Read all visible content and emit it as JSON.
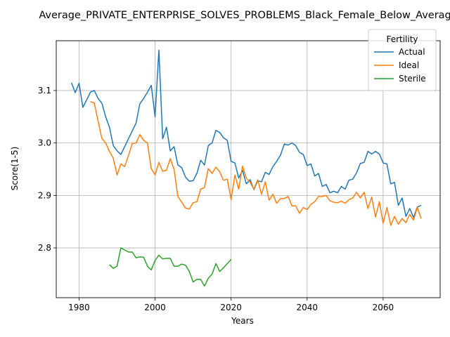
{
  "chart_data": {
    "type": "line",
    "title": "Average_PRIVATE_ENTERPRISE_SOLVES_PROBLEMS_Black_Female_Below_Average",
    "xlabel": "Years",
    "ylabel": "Score(1-5)",
    "xlim": [
      1974,
      2075
    ],
    "ylim": [
      2.705,
      3.195
    ],
    "x_ticks": [
      1980,
      2000,
      2020,
      2040,
      2060
    ],
    "y_ticks": [
      2.8,
      2.9,
      3.0,
      3.1
    ],
    "x_tick_labels": [
      "1980",
      "2000",
      "2020",
      "2040",
      "2060"
    ],
    "y_tick_labels": [
      "2.8",
      "2.9",
      "3.0",
      "3.1"
    ],
    "grid": true,
    "legend": {
      "title": "Fertility",
      "placement": "top-right"
    },
    "series": [
      {
        "name": "Actual",
        "color": "#1f77b4",
        "x": [
          1978,
          1979,
          1980,
          1981,
          1982,
          1983,
          1984,
          1985,
          1986,
          1987,
          1988,
          1989,
          1990,
          1991,
          1992,
          1993,
          1994,
          1995,
          1996,
          1997,
          1998,
          1999,
          2000,
          2001,
          2002,
          2003,
          2004,
          2005,
          2006,
          2007,
          2008,
          2009,
          2010,
          2011,
          2012,
          2013,
          2014,
          2015,
          2016,
          2017,
          2018,
          2019,
          2020,
          2021,
          2022,
          2023,
          2024,
          2025,
          2026,
          2027,
          2028,
          2029,
          2030,
          2031,
          2032,
          2033,
          2034,
          2035,
          2036,
          2037,
          2038,
          2039,
          2040,
          2041,
          2042,
          2043,
          2044,
          2045,
          2046,
          2047,
          2048,
          2049,
          2050,
          2051,
          2052,
          2053,
          2054,
          2055,
          2056,
          2057,
          2058,
          2059,
          2060,
          2061,
          2062,
          2063,
          2064,
          2065,
          2066,
          2067,
          2068,
          2069,
          2070
        ],
        "values": [
          3.115,
          3.096,
          3.114,
          3.068,
          3.082,
          3.097,
          3.1,
          3.085,
          3.076,
          3.05,
          3.03,
          2.995,
          2.985,
          2.978,
          2.993,
          3.008,
          3.023,
          3.038,
          3.075,
          3.085,
          3.097,
          3.11,
          3.05,
          3.177,
          3.008,
          3.03,
          2.985,
          2.993,
          2.958,
          2.953,
          2.935,
          2.927,
          2.928,
          2.942,
          2.967,
          2.958,
          2.995,
          3.0,
          3.024,
          3.02,
          3.01,
          3.005,
          2.965,
          2.962,
          2.933,
          2.948,
          2.922,
          2.93,
          2.911,
          2.928,
          2.926,
          2.944,
          2.94,
          2.955,
          2.965,
          2.977,
          2.998,
          2.996,
          3.0,
          2.995,
          2.982,
          2.978,
          2.957,
          2.96,
          2.937,
          2.942,
          2.917,
          2.921,
          2.905,
          2.908,
          2.905,
          2.917,
          2.912,
          2.929,
          2.931,
          2.943,
          2.961,
          2.963,
          2.984,
          2.979,
          2.984,
          2.979,
          2.962,
          2.96,
          2.922,
          2.925,
          2.881,
          2.895,
          2.86,
          2.875,
          2.858,
          2.878,
          2.881
        ]
      },
      {
        "name": "Ideal",
        "color": "#ff7f0e",
        "x": [
          1983,
          1984,
          1985,
          1986,
          1987,
          1988,
          1989,
          1990,
          1991,
          1992,
          1993,
          1994,
          1995,
          1996,
          1997,
          1998,
          1999,
          2000,
          2001,
          2002,
          2003,
          2004,
          2005,
          2006,
          2007,
          2008,
          2009,
          2010,
          2011,
          2012,
          2013,
          2014,
          2015,
          2016,
          2017,
          2018,
          2019,
          2020,
          2021,
          2022,
          2023,
          2024,
          2025,
          2026,
          2027,
          2028,
          2029,
          2030,
          2031,
          2032,
          2033,
          2034,
          2035,
          2036,
          2037,
          2038,
          2039,
          2040,
          2041,
          2042,
          2043,
          2044,
          2045,
          2046,
          2047,
          2048,
          2049,
          2050,
          2051,
          2052,
          2053,
          2054,
          2055,
          2056,
          2057,
          2058,
          2059,
          2060,
          2061,
          2062,
          2063,
          2064,
          2065,
          2066,
          2067,
          2068,
          2069,
          2070
        ],
        "values": [
          3.079,
          3.076,
          3.042,
          3.009,
          3.0,
          2.984,
          2.971,
          2.939,
          2.96,
          2.955,
          2.976,
          2.999,
          3.0,
          3.016,
          3.005,
          3.0,
          2.951,
          2.939,
          2.963,
          2.946,
          2.948,
          2.97,
          2.95,
          2.898,
          2.887,
          2.876,
          2.874,
          2.886,
          2.888,
          2.912,
          2.915,
          2.951,
          2.942,
          2.954,
          2.945,
          2.929,
          2.931,
          2.892,
          2.939,
          2.912,
          2.956,
          2.933,
          2.925,
          2.912,
          2.93,
          2.902,
          2.926,
          2.891,
          2.902,
          2.885,
          2.894,
          2.894,
          2.898,
          2.88,
          2.88,
          2.866,
          2.877,
          2.873,
          2.883,
          2.888,
          2.898,
          2.898,
          2.9,
          2.89,
          2.887,
          2.886,
          2.889,
          2.885,
          2.892,
          2.895,
          2.906,
          2.895,
          2.906,
          2.875,
          2.897,
          2.859,
          2.888,
          2.847,
          2.877,
          2.843,
          2.86,
          2.845,
          2.856,
          2.848,
          2.864,
          2.853,
          2.877,
          2.856
        ]
      },
      {
        "name": "Sterile",
        "color": "#2ca02c",
        "x": [
          1988,
          1989,
          1990,
          1991,
          1992,
          1993,
          1994,
          1995,
          1996,
          1997,
          1998,
          1999,
          2000,
          2001,
          2002,
          2003,
          2004,
          2005,
          2006,
          2007,
          2008,
          2009,
          2010,
          2011,
          2012,
          2013,
          2014,
          2015,
          2016,
          2017,
          2018,
          2019,
          2020
        ],
        "values": [
          2.768,
          2.761,
          2.765,
          2.8,
          2.796,
          2.792,
          2.792,
          2.781,
          2.783,
          2.782,
          2.765,
          2.758,
          2.776,
          2.786,
          2.779,
          2.78,
          2.78,
          2.765,
          2.765,
          2.769,
          2.767,
          2.755,
          2.735,
          2.74,
          2.74,
          2.727,
          2.742,
          2.75,
          2.77,
          2.755,
          2.762,
          2.77,
          2.778
        ]
      }
    ]
  }
}
